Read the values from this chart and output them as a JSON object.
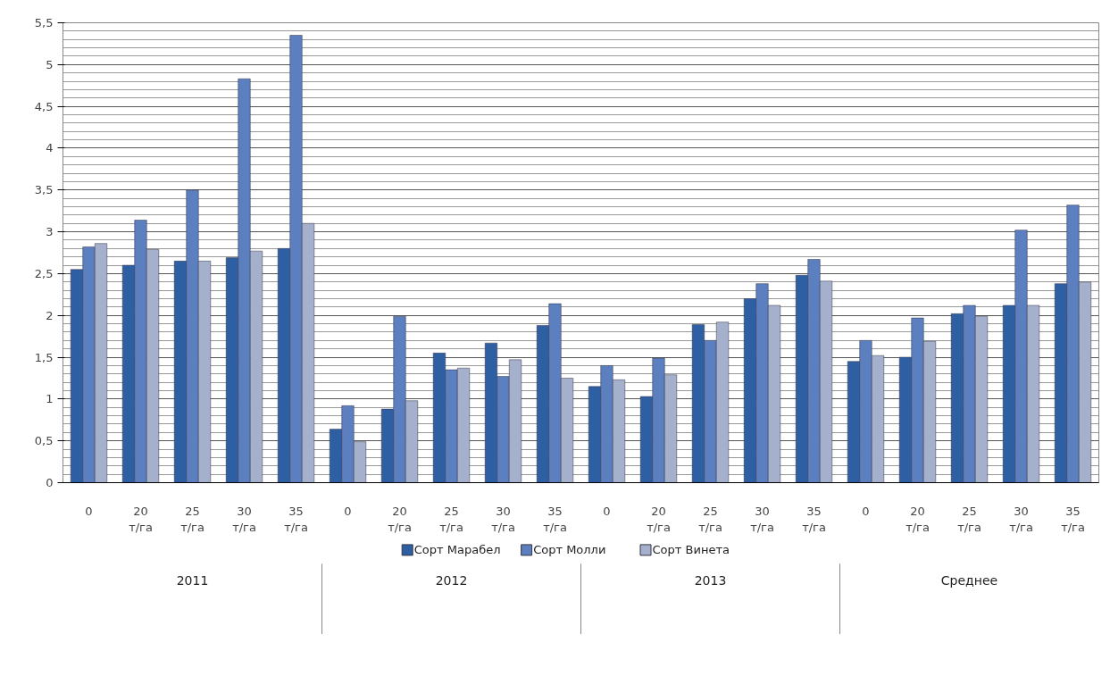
{
  "chart_data": {
    "type": "bar",
    "categories": [
      "0",
      "20 т/га",
      "25 т/га",
      "30 т/га",
      "35 т/га",
      "0",
      "20 т/га",
      "25 т/га",
      "30 т/га",
      "35 т/га",
      "0",
      "20 т/га",
      "25 т/га",
      "30 т/га",
      "35 т/га",
      "0",
      "20 т/га",
      "25 т/га",
      "30 т/га",
      "35 т/га"
    ],
    "series": [
      {
        "name": "Сорт Марабел",
        "color": "#2e5fa3",
        "values": [
          2.55,
          2.6,
          2.65,
          2.69,
          2.8,
          0.64,
          0.88,
          1.55,
          1.67,
          1.88,
          1.15,
          1.03,
          1.89,
          2.2,
          2.48,
          1.45,
          1.5,
          2.02,
          2.12,
          2.38
        ]
      },
      {
        "name": "Сорт Молли",
        "color": "#5b7fbf",
        "values": [
          2.82,
          3.14,
          3.5,
          4.83,
          5.35,
          0.92,
          1.99,
          1.35,
          1.27,
          2.14,
          1.4,
          1.49,
          1.7,
          2.38,
          2.67,
          1.7,
          1.97,
          2.12,
          3.02,
          3.32
        ]
      },
      {
        "name": "Сорт Винета",
        "color": "#a5b1cc",
        "values": [
          2.86,
          2.79,
          2.65,
          2.77,
          3.1,
          0.49,
          0.98,
          1.37,
          1.47,
          1.25,
          1.23,
          1.29,
          1.92,
          2.12,
          2.41,
          1.52,
          1.69,
          1.99,
          2.12,
          2.4
        ]
      }
    ],
    "annotations": [
      "2011",
      "2012",
      "2013",
      "Среднее"
    ],
    "ylim": [
      0,
      5.5
    ],
    "yticks": [
      0,
      {
        "value": 0.5,
        "label": "0,5"
      },
      1,
      {
        "value": 1.5,
        "label": "1,5"
      },
      2,
      {
        "value": 2.5,
        "label": "2,5"
      },
      3,
      {
        "value": 3.5,
        "label": "3,5"
      },
      4,
      {
        "value": 4.5,
        "label": "4,5"
      },
      5,
      {
        "value": 5.5,
        "label": "5,5"
      }
    ],
    "grid": "y",
    "legend": "bottom"
  }
}
